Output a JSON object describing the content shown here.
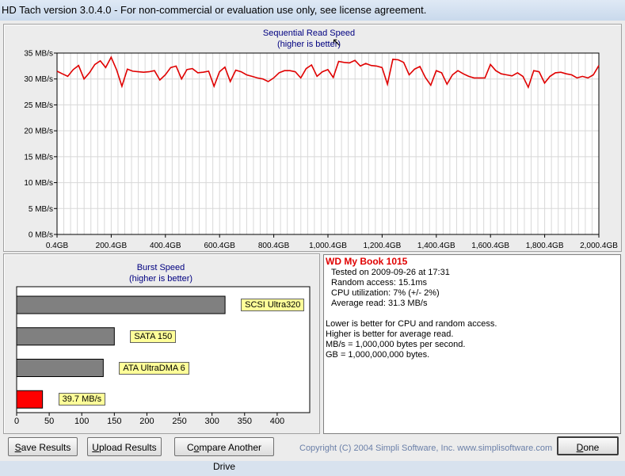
{
  "window": {
    "title": "HD Tach version 3.0.4.0  - For non-commercial or evaluation use only, see license agreement."
  },
  "seq_chart": {
    "title": "Sequential Read Speed",
    "subtitle": "(higher is better)"
  },
  "burst_chart": {
    "title": "Burst Speed",
    "subtitle": "(higher is better)"
  },
  "chart_data": [
    {
      "type": "line",
      "title": "Sequential Read Speed",
      "subtitle": "(higher is better)",
      "y_unit": "MB/s",
      "ylim": [
        0,
        35
      ],
      "y_ticks": [
        "0 MB/s",
        "5 MB/s",
        "10 MB/s",
        "15 MB/s",
        "20 MB/s",
        "25 MB/s",
        "30 MB/s",
        "35 MB/s"
      ],
      "x_ticks": [
        "0.4GB",
        "200.4GB",
        "400.4GB",
        "600.4GB",
        "800.4GB",
        "1,000.4GB",
        "1,200.4GB",
        "1,400.4GB",
        "1,600.4GB",
        "1,800.4GB",
        "2,000.4GB"
      ],
      "xlim": [
        0.4,
        2000.4
      ],
      "grid": true,
      "series": [
        {
          "color": "#e00000",
          "x": [
            0.4,
            20,
            40,
            60,
            80,
            100,
            120,
            140,
            160,
            180,
            200,
            220,
            240,
            260,
            280,
            300,
            320,
            340,
            360,
            380,
            400,
            420,
            440,
            460,
            480,
            500,
            520,
            540,
            560,
            580,
            600,
            620,
            640,
            660,
            680,
            700,
            720,
            740,
            760,
            780,
            800,
            820,
            840,
            860,
            880,
            900,
            920,
            940,
            960,
            980,
            1000,
            1020,
            1040,
            1060,
            1080,
            1100,
            1120,
            1140,
            1160,
            1180,
            1200,
            1220,
            1240,
            1260,
            1280,
            1300,
            1320,
            1340,
            1360,
            1380,
            1400,
            1420,
            1440,
            1460,
            1480,
            1500,
            1520,
            1540,
            1560,
            1580,
            1600,
            1620,
            1640,
            1660,
            1680,
            1700,
            1720,
            1740,
            1760,
            1780,
            1800,
            1820,
            1840,
            1860,
            1880,
            1900,
            1920,
            1940,
            1960,
            1980,
            2000.4
          ],
          "y": [
            31.5,
            31,
            30.5,
            31.8,
            32.6,
            30,
            31.2,
            32.8,
            33.5,
            32.2,
            34.2,
            31.8,
            28.6,
            31.9,
            31.5,
            31.4,
            31.3,
            31.4,
            31.6,
            29.8,
            30.8,
            32.2,
            32.5,
            30,
            31.8,
            32,
            31.2,
            31.3,
            31.5,
            28.6,
            31.4,
            32.3,
            29.5,
            31.7,
            31.4,
            30.8,
            30.5,
            30.2,
            30,
            29.5,
            30.2,
            31.2,
            31.6,
            31.6,
            31.4,
            30.2,
            32,
            32.7,
            30.5,
            31.4,
            31.8,
            30.3,
            33.4,
            33.2,
            33.1,
            33.6,
            32.5,
            33,
            32.6,
            32.5,
            32.2,
            29,
            33.8,
            33.7,
            33.2,
            30.8,
            31.9,
            32.4,
            30.3,
            28.8,
            31.6,
            31.2,
            29,
            30.8,
            31.6,
            31,
            30.5,
            30.2,
            30.2,
            30.2,
            32.8,
            31.6,
            31,
            30.8,
            30.6,
            31.2,
            30.5,
            28.4,
            31.6,
            31.4,
            29.2,
            30.5,
            31.2,
            31.3,
            31,
            30.8,
            30.2,
            30.5,
            30.2,
            30.8,
            32.6
          ]
        }
      ]
    },
    {
      "type": "bar",
      "orientation": "horizontal",
      "title": "Burst Speed",
      "subtitle": "(higher is better)",
      "categories": [
        "SCSI Ultra320",
        "SATA 150",
        "ATA UltraDMA 6",
        "39.7 MB/s"
      ],
      "values": [
        320,
        150,
        133,
        39.7
      ],
      "colors": [
        "#808080",
        "#808080",
        "#808080",
        "#ff0000"
      ],
      "xlim": [
        0,
        450
      ],
      "x_ticks": [
        "0",
        "50",
        "100",
        "150",
        "200",
        "250",
        "300",
        "350",
        "400"
      ]
    }
  ],
  "results": {
    "drive_name": "WD My Book 1015",
    "lines": [
      "Tested on 2009-09-26 at 17:31",
      "Random access: 15.1ms",
      "CPU utilization: 7% (+/- 2%)",
      "Average read: 31.3 MB/s"
    ],
    "notes": [
      "Lower is better for CPU and random access.",
      "Higher is better for average read.",
      "MB/s = 1,000,000 bytes per second.",
      "GB = 1,000,000,000 bytes."
    ]
  },
  "buttons": {
    "save": {
      "u": "S",
      "rest": "ave Results"
    },
    "upload": {
      "u": "U",
      "rest": "pload Results"
    },
    "compare": {
      "pre": "C",
      "u": "o",
      "rest": "mpare Another Drive"
    },
    "done": {
      "u": "D",
      "rest": "one"
    }
  },
  "footer": {
    "copyright": "Copyright (C) 2004 Simpli Software, Inc. www.simplisoftware.com"
  }
}
